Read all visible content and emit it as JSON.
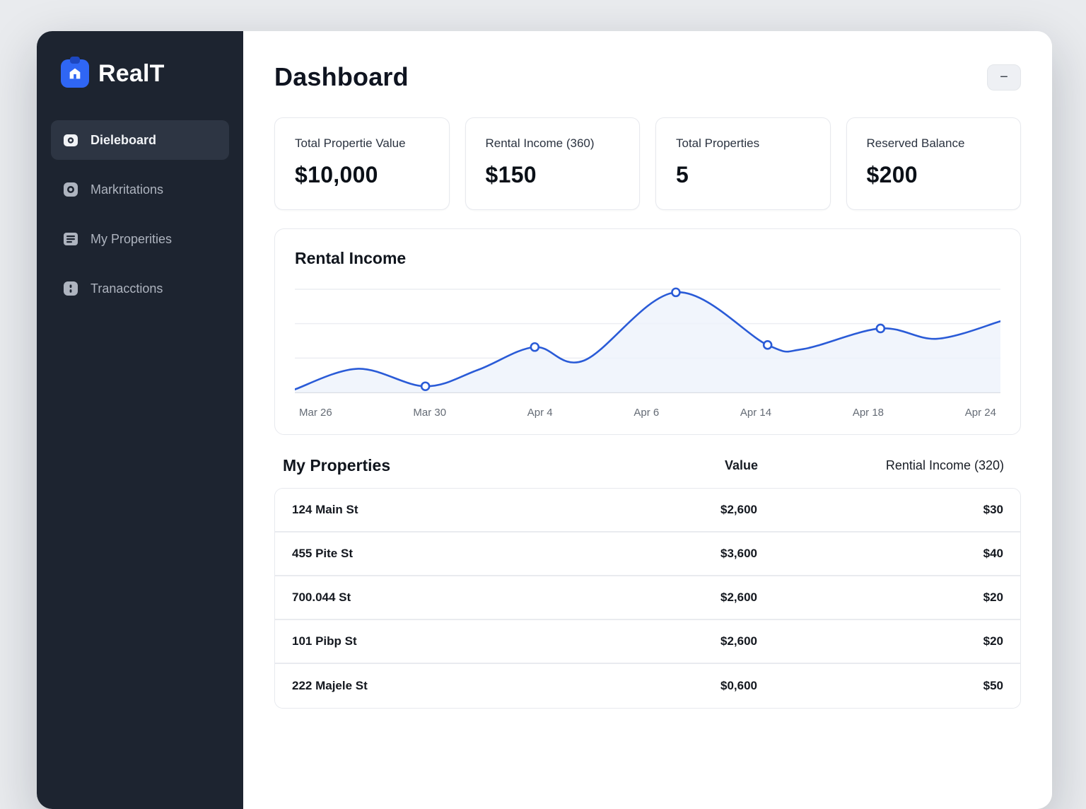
{
  "app": {
    "brand": "RealT"
  },
  "sidebar": {
    "items": [
      {
        "label": "Dieleboard",
        "active": true
      },
      {
        "label": "Markritations",
        "active": false
      },
      {
        "label": "My Properities",
        "active": false
      },
      {
        "label": "Tranacctions",
        "active": false
      }
    ]
  },
  "header": {
    "title": "Dashboard",
    "collapse_label": "−"
  },
  "stats": [
    {
      "label": "Total Propertie Value",
      "value": "$10,000"
    },
    {
      "label": "Rental Income (360)",
      "value": "$150"
    },
    {
      "label": "Total Properties",
      "value": "5"
    },
    {
      "label": "Reserved Balance",
      "value": "$200"
    }
  ],
  "chart_data": {
    "type": "line",
    "title": "Rental Income",
    "x_ticks": [
      "Mar 26",
      "Mar 30",
      "Apr 4",
      "Apr 6",
      "Apr 14",
      "Apr 18",
      "Apr 24"
    ],
    "ylim": [
      0,
      100
    ],
    "grid": true,
    "legend": false,
    "line_color": "#2a5bd7",
    "fill_color": "#edf3fb",
    "series": [
      {
        "name": "Rental Income",
        "points": [
          {
            "x": 0,
            "y": 3,
            "marker": false
          },
          {
            "x": 9,
            "y": 23,
            "marker": false
          },
          {
            "x": 18.5,
            "y": 6,
            "marker": true,
            "tick": "Mar 30"
          },
          {
            "x": 26,
            "y": 22,
            "marker": false
          },
          {
            "x": 34,
            "y": 44,
            "marker": true,
            "tick": "Apr 4"
          },
          {
            "x": 41,
            "y": 31,
            "marker": false
          },
          {
            "x": 54,
            "y": 97,
            "marker": true,
            "tick": "Apr 6"
          },
          {
            "x": 67,
            "y": 46,
            "marker": true,
            "tick": "Apr 14"
          },
          {
            "x": 72,
            "y": 42,
            "marker": false
          },
          {
            "x": 83,
            "y": 62,
            "marker": true,
            "tick": "Apr 18"
          },
          {
            "x": 91,
            "y": 52,
            "marker": false
          },
          {
            "x": 100,
            "y": 69,
            "marker": false
          }
        ]
      }
    ]
  },
  "table": {
    "title": "My Properties",
    "columns": [
      "Value",
      "Rential Income (320)"
    ],
    "rows": [
      {
        "name": "124 Main St",
        "value": "$2,600",
        "income": "$30"
      },
      {
        "name": "455 Pite St",
        "value": "$3,600",
        "income": "$40"
      },
      {
        "name": "700.044 St",
        "value": "$2,600",
        "income": "$20"
      },
      {
        "name": "101 Pibp St",
        "value": "$2,600",
        "income": "$20"
      },
      {
        "name": "222 Majele St",
        "value": "$0,600",
        "income": "$50"
      }
    ]
  }
}
